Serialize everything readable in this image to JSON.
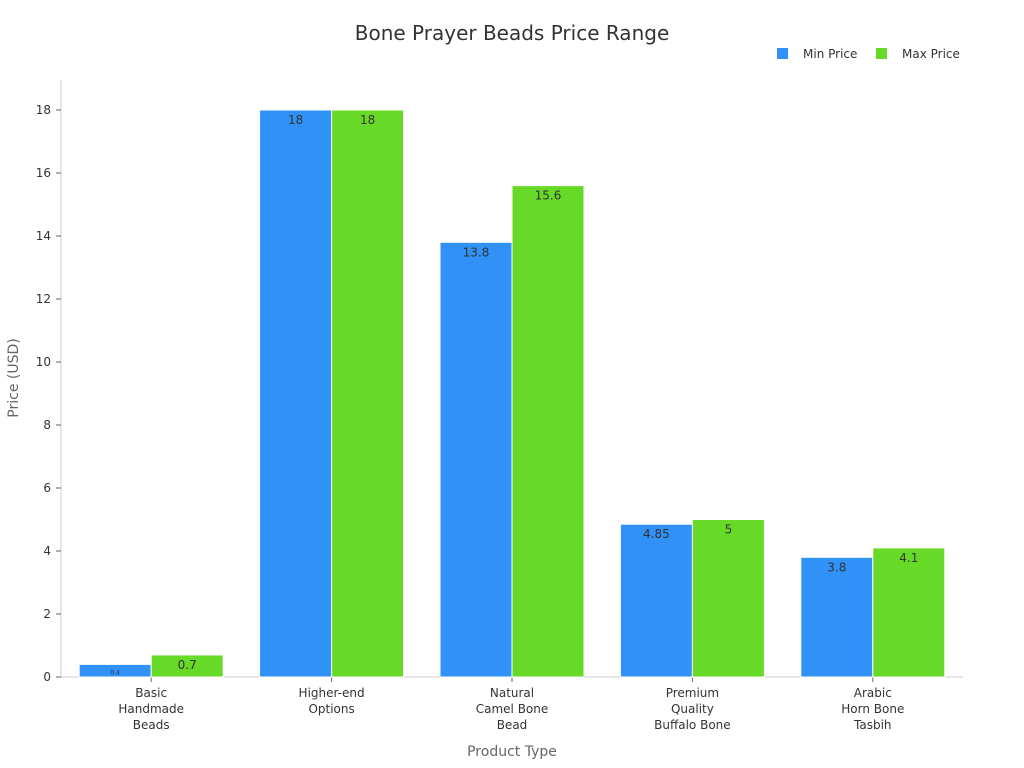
{
  "chart_data": {
    "type": "bar",
    "title": "Bone Prayer Beads Price Range",
    "xlabel": "Product Type",
    "ylabel": "Price (USD)",
    "ylim": [
      0,
      18.9
    ],
    "yticks": [
      0,
      2,
      4,
      6,
      8,
      10,
      12,
      14,
      16,
      18
    ],
    "grid": false,
    "legend_position": "top-right",
    "categories": [
      [
        "Basic",
        "Handmade",
        "Beads"
      ],
      [
        "Higher-end",
        "Options"
      ],
      [
        "Natural",
        "Camel Bone",
        "Bead"
      ],
      [
        "Premium",
        "Quality",
        "Buffalo Bone"
      ],
      [
        "Arabic",
        "Horn Bone",
        "Tasbih"
      ]
    ],
    "series": [
      {
        "name": "Min Price",
        "color": "#3091f7",
        "values": [
          0.4,
          18,
          13.8,
          4.85,
          3.8
        ],
        "labels": [
          "0.4",
          "18",
          "13.8",
          "4.85",
          "3.8"
        ]
      },
      {
        "name": "Max Price",
        "color": "#66da26",
        "values": [
          0.7,
          18,
          15.6,
          5,
          4.1
        ],
        "labels": [
          "0.7",
          "18",
          "15.6",
          "5",
          "4.1"
        ]
      }
    ]
  }
}
